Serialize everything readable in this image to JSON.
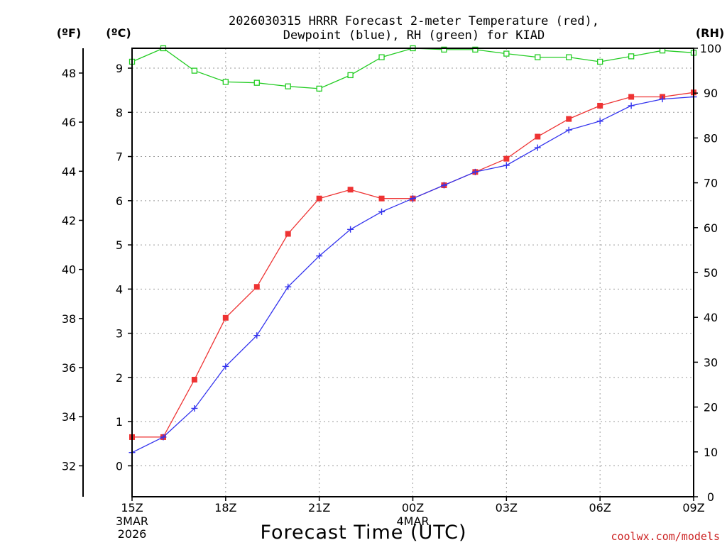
{
  "chart_data": {
    "type": "line",
    "title": "2026030315 HRRR Forecast 2-meter Temperature (red),",
    "subtitle": "Dewpoint (blue), RH (green) for KIAD",
    "xlabel": "Forecast Time (UTC)",
    "credit": "coolwx.com/models",
    "units": {
      "left_outer": "(ºF)",
      "left_inner": "(ºC)",
      "right": "(RH)"
    },
    "hours": [
      15,
      16,
      17,
      18,
      19,
      20,
      21,
      22,
      23,
      24,
      25,
      26,
      27,
      28,
      29,
      30,
      31,
      32,
      33
    ],
    "xlim": [
      15,
      33
    ],
    "x_ticks": [
      {
        "hour": 15,
        "label": "15Z",
        "sub": [
          "3MAR",
          "2026"
        ]
      },
      {
        "hour": 18,
        "label": "18Z",
        "sub": []
      },
      {
        "hour": 21,
        "label": "21Z",
        "sub": []
      },
      {
        "hour": 24,
        "label": "00Z",
        "sub": [
          "4MAR"
        ]
      },
      {
        "hour": 27,
        "label": "03Z",
        "sub": []
      },
      {
        "hour": 30,
        "label": "06Z",
        "sub": []
      },
      {
        "hour": 33,
        "label": "09Z",
        "sub": []
      }
    ],
    "ylim_c": [
      -0.7,
      9.45
    ],
    "ylim_rh": [
      0,
      100
    ],
    "c_ticks": [
      "0",
      "1",
      "2",
      "3",
      "4",
      "5",
      "6",
      "7",
      "8",
      "9"
    ],
    "f_ticks": [
      "32",
      "34",
      "36",
      "38",
      "40",
      "42",
      "44",
      "46",
      "48"
    ],
    "rh_ticks": [
      "0",
      "10",
      "20",
      "30",
      "40",
      "50",
      "60",
      "70",
      "80",
      "90",
      "100"
    ],
    "series": [
      {
        "name": "Temperature",
        "color": "#ee3333",
        "marker": "square",
        "values": [
          0.65,
          0.65,
          1.95,
          3.35,
          4.05,
          5.25,
          6.05,
          6.25,
          6.05,
          6.05,
          6.35,
          6.65,
          6.95,
          7.45,
          7.85,
          8.15,
          8.35,
          8.35,
          8.45
        ]
      },
      {
        "name": "Dewpoint",
        "color": "#3333ee",
        "marker": "plus",
        "values": [
          0.3,
          0.65,
          1.3,
          2.25,
          2.95,
          4.05,
          4.75,
          5.35,
          5.75,
          6.05,
          6.35,
          6.65,
          6.8,
          7.2,
          7.6,
          7.8,
          8.15,
          8.3,
          8.35
        ]
      },
      {
        "name": "RH",
        "color": "#22cc22",
        "marker": "open-square",
        "values": [
          97,
          100,
          95,
          92.5,
          92.3,
          91.5,
          91,
          94,
          98,
          100,
          99.7,
          99.7,
          98.8,
          98,
          98,
          97,
          98.2,
          99.5,
          99
        ]
      }
    ]
  }
}
